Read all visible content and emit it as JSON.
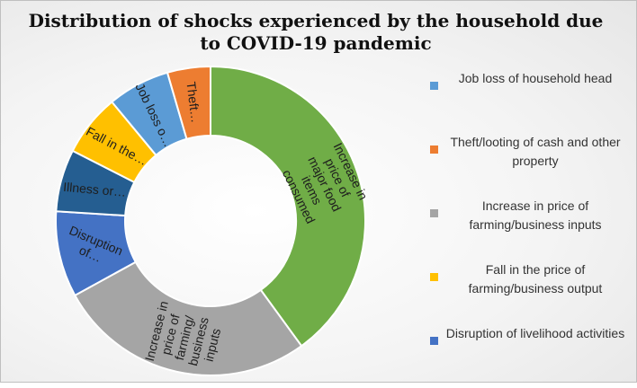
{
  "chart_data": {
    "type": "pie",
    "style": "doughnut",
    "title": "Distribution of shocks experienced  by the household due to COVID-19 pandemic",
    "slices": [
      {
        "id": "food",
        "label": [
          "Increase in",
          "price of",
          "major food",
          "items",
          "consumed"
        ],
        "value": 40.0,
        "color": "#70AD47"
      },
      {
        "id": "inputs",
        "label": [
          "Increase in",
          "price of",
          "farming/",
          "business",
          "inputs"
        ],
        "value": 27.0,
        "color": "#A5A5A5"
      },
      {
        "id": "disruption",
        "label": [
          "Disruption",
          "of…"
        ],
        "value": 9.0,
        "color": "#4472C4"
      },
      {
        "id": "illness",
        "label": [
          "Illness or…"
        ],
        "value": 6.5,
        "color": "#255E91"
      },
      {
        "id": "fall",
        "label": [
          "Fall in the…"
        ],
        "value": 6.5,
        "color": "#FFC000"
      },
      {
        "id": "jobloss",
        "label": [
          "Job loss o…"
        ],
        "value": 6.5,
        "color": "#5B9BD5"
      },
      {
        "id": "theft",
        "label": [
          "Theft…"
        ],
        "value": 4.5,
        "color": "#ED7D31"
      }
    ],
    "legend_position": "right"
  },
  "legend": [
    {
      "text": "Job loss of household head",
      "color": "#5B9BD5"
    },
    {
      "text": "Theft/looting of cash and other property",
      "color": "#ED7D31"
    },
    {
      "text": "Increase in price of farming/business inputs",
      "color": "#A5A5A5"
    },
    {
      "text": "Fall in the price of farming/business output",
      "color": "#FFC000"
    },
    {
      "text": "Disruption of livelihood activities",
      "color": "#4472C4"
    }
  ]
}
